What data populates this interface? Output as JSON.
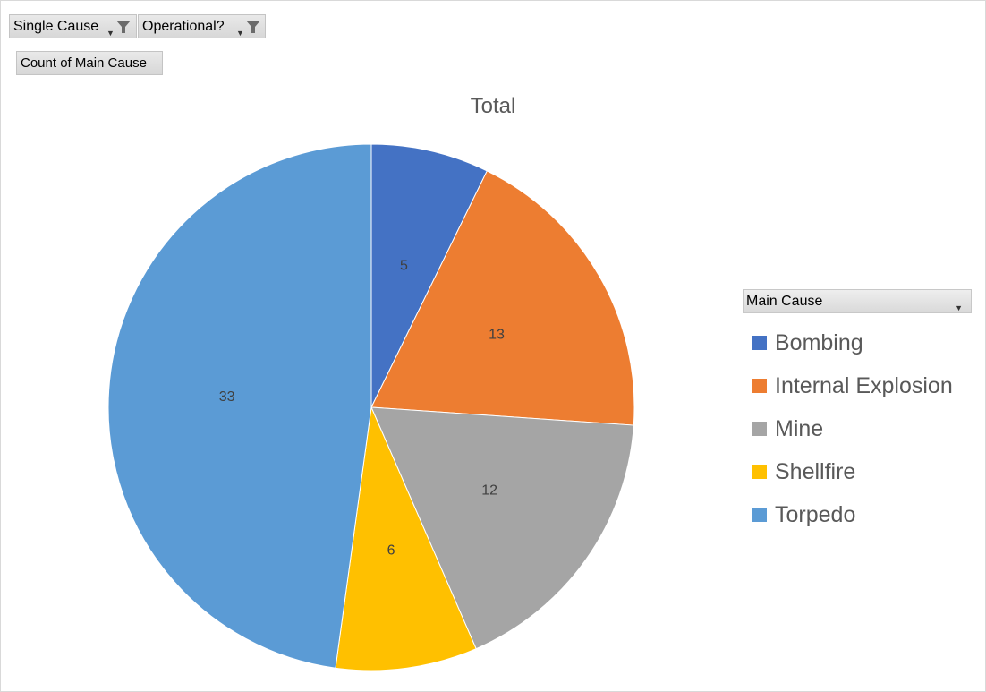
{
  "filters": [
    {
      "label": "Single Cause"
    },
    {
      "label": "Operational?"
    }
  ],
  "value_field": {
    "label": "Count of Main Cause"
  },
  "legend": {
    "header": "Main Cause"
  },
  "chart_data": {
    "type": "pie",
    "title": "Total",
    "categories": [
      "Bombing",
      "Internal Explosion",
      "Mine",
      "Shellfire",
      "Torpedo"
    ],
    "values": [
      5,
      13,
      12,
      6,
      33
    ],
    "colors": [
      "#4472C4",
      "#ED7D31",
      "#A5A5A5",
      "#FFC000",
      "#5B9BD5"
    ],
    "data_labels": true,
    "legend_position": "right"
  }
}
